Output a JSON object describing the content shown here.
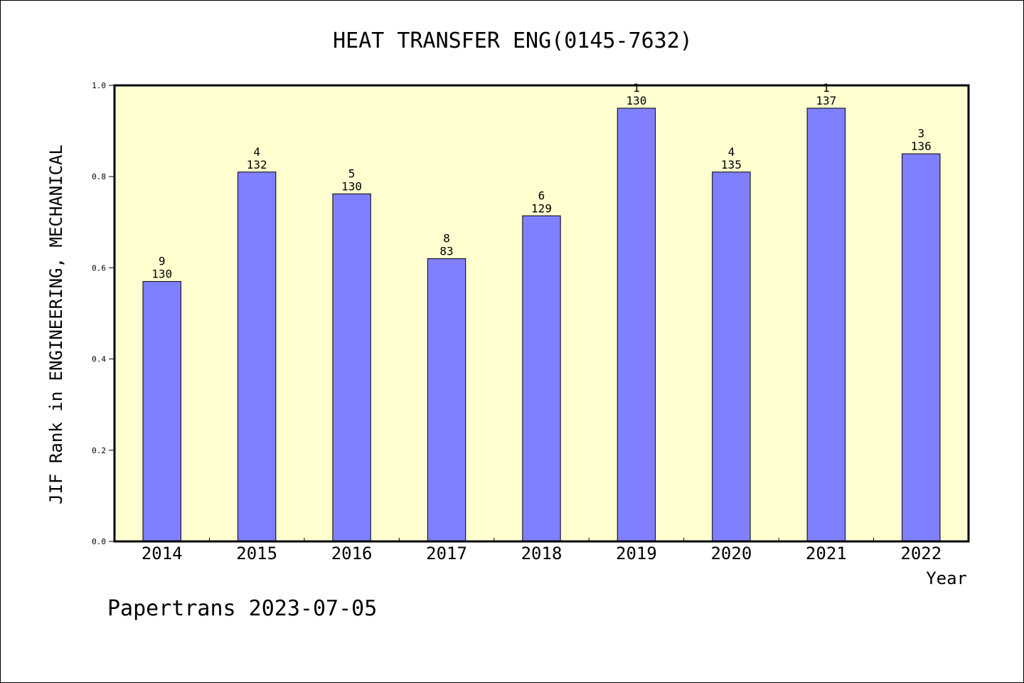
{
  "chart_data": {
    "type": "bar",
    "title": "HEAT TRANSFER ENG(0145-7632)",
    "xlabel": "Year",
    "ylabel": "JIF Rank in ENGINEERING, MECHANICAL",
    "categories": [
      "2014",
      "2015",
      "2016",
      "2017",
      "2018",
      "2019",
      "2020",
      "2021",
      "2022"
    ],
    "values": [
      0.57,
      0.81,
      0.762,
      0.62,
      0.714,
      0.95,
      0.81,
      0.95,
      0.85
    ],
    "rank_labels": [
      "9",
      "4",
      "5",
      "8",
      "6",
      "1",
      "4",
      "1",
      "3"
    ],
    "total_labels": [
      "130",
      "132",
      "130",
      "83",
      "129",
      "130",
      "135",
      "137",
      "136"
    ],
    "ylim": [
      0,
      1.0
    ],
    "yticks": [
      "0.0",
      "0.2",
      "0.4",
      "0.6",
      "0.8",
      "1.0"
    ],
    "ytick_values": [
      0,
      0.2,
      0.4,
      0.6,
      0.8,
      1.0
    ],
    "grid": false,
    "colors": {
      "bar": "#8080ff",
      "plot_background": "#ffffd0",
      "axis": "#000000"
    }
  },
  "footer": "Papertrans 2023-07-05"
}
